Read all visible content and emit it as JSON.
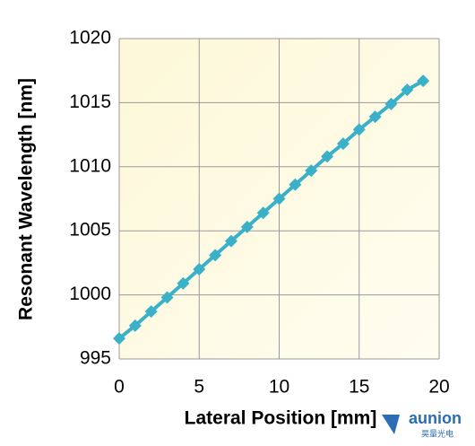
{
  "chart_data": {
    "type": "line",
    "x_label": "Lateral Position [mm]",
    "y_label": "Resonant Wavelength [nm]",
    "x": [
      0,
      1,
      2,
      3,
      4,
      5,
      6,
      7,
      8,
      9,
      10,
      11,
      12,
      13,
      14,
      15,
      16,
      17,
      18,
      19
    ],
    "series": [
      {
        "name": "Resonant Wavelength",
        "color": "#3ab1c8",
        "values": [
          996.6,
          997.6,
          998.7,
          999.8,
          1000.9,
          1002.0,
          1003.1,
          1004.2,
          1005.3,
          1006.4,
          1007.5,
          1008.6,
          1009.7,
          1010.8,
          1011.8,
          1012.9,
          1013.9,
          1014.9,
          1016.0,
          1016.7
        ]
      }
    ],
    "xlim": [
      0,
      20
    ],
    "xticks": [
      0,
      5,
      10,
      15,
      20
    ],
    "ylim": [
      995,
      1020
    ],
    "yticks": [
      995,
      1000,
      1005,
      1010,
      1015,
      1020
    ],
    "grid": true
  },
  "watermark": {
    "brand": "aunion",
    "subtitle": "昊量光电"
  }
}
